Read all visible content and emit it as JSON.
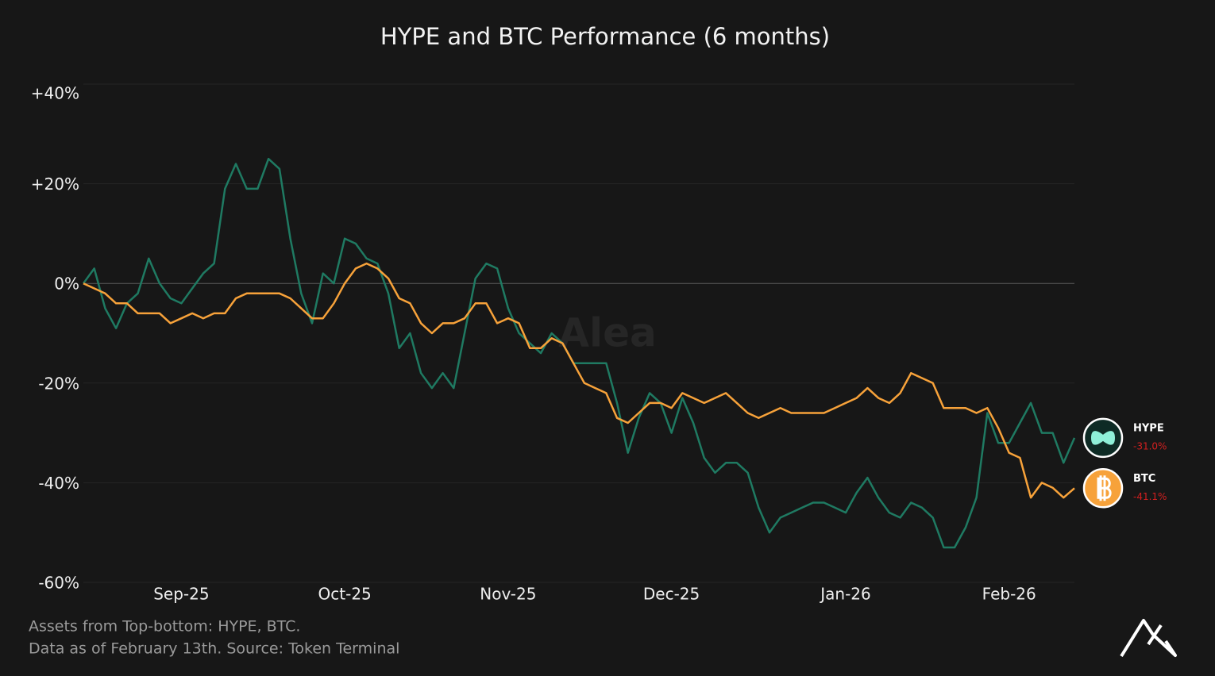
{
  "chart_data": {
    "type": "line",
    "title": "HYPE and BTC Performance (6 months)",
    "watermark": "Alea",
    "notes": [
      "Assets from Top-bottom: HYPE, BTC.",
      "Data as of February 13th. Source: Token Terminal"
    ],
    "categories": [
      null,
      null,
      null,
      null,
      null,
      null,
      null,
      null,
      null,
      "Sep-25",
      null,
      null,
      null,
      null,
      null,
      null,
      null,
      null,
      null,
      null,
      null,
      null,
      null,
      null,
      "Oct-25",
      null,
      null,
      null,
      null,
      null,
      null,
      null,
      null,
      null,
      null,
      null,
      null,
      null,
      null,
      "Nov-25",
      null,
      null,
      null,
      null,
      null,
      null,
      null,
      null,
      null,
      null,
      null,
      null,
      null,
      null,
      "Dec-25",
      null,
      null,
      null,
      null,
      null,
      null,
      null,
      null,
      null,
      null,
      null,
      null,
      null,
      null,
      null,
      "Jan-26",
      null,
      null,
      null,
      null,
      null,
      null,
      null,
      null,
      null,
      null,
      null,
      null,
      null,
      null,
      "Feb-26",
      null,
      null,
      null,
      null,
      null,
      null
    ],
    "series": [
      {
        "name": "HYPE",
        "color": "#1f7a62",
        "last_label": "-31.0%",
        "values": [
          0,
          3,
          -5,
          -9,
          -4,
          -2,
          5,
          0,
          -3,
          -4,
          -1,
          2,
          4,
          19,
          24,
          19,
          19,
          25,
          23,
          9,
          -2,
          -8,
          2,
          0,
          9,
          8,
          5,
          4,
          -2,
          -13,
          -10,
          -18,
          -21,
          -18,
          -21,
          -10,
          1,
          4,
          3,
          -5,
          -10,
          -12,
          -14,
          -10,
          -12,
          -16,
          -16,
          -16,
          -16,
          -24,
          -34,
          -27,
          -22,
          -24,
          -30,
          -23,
          -28,
          -35,
          -38,
          -36,
          -36,
          -38,
          -45,
          -50,
          -47,
          -46,
          -45,
          -44,
          -44,
          -45,
          -46,
          -42,
          -39,
          -43,
          -46,
          -47,
          -44,
          -45,
          -47,
          -53,
          -53,
          -49,
          -43,
          -26,
          -32,
          -32,
          -28,
          -24,
          -30,
          -30,
          -36,
          -31.0
        ]
      },
      {
        "name": "BTC",
        "color": "#f7a23a",
        "last_label": "-41.1%",
        "values": [
          0,
          -1,
          -2,
          -4,
          -4,
          -6,
          -6,
          -6,
          -8,
          -7,
          -6,
          -7,
          -6,
          -6,
          -3,
          -2,
          -2,
          -2,
          -2,
          -3,
          -5,
          -7,
          -7,
          -4,
          0,
          3,
          4,
          3,
          1,
          -3,
          -4,
          -8,
          -10,
          -8,
          -8,
          -7,
          -4,
          -4,
          -8,
          -7,
          -8,
          -13,
          -13,
          -11,
          -12,
          -16,
          -20,
          -21,
          -22,
          -27,
          -28,
          -26,
          -24,
          -24,
          -25,
          -22,
          -23,
          -24,
          -23,
          -22,
          -24,
          -26,
          -27,
          -26,
          -25,
          -26,
          -26,
          -26,
          -26,
          -25,
          -24,
          -23,
          -21,
          -23,
          -24,
          -22,
          -18,
          -19,
          -20,
          -25,
          -25,
          -25,
          -26,
          -25,
          -29,
          -34,
          -35,
          -43,
          -40,
          -41,
          -43,
          -41.1
        ]
      }
    ],
    "ylim": [
      -60,
      40
    ],
    "yticks": [
      {
        "value": 40,
        "label": "+40%"
      },
      {
        "value": 20,
        "label": "+20%"
      },
      {
        "value": 0,
        "label": "0%"
      },
      {
        "value": -20,
        "label": "-20%"
      },
      {
        "value": -40,
        "label": "-40%"
      },
      {
        "value": -60,
        "label": "-60%"
      }
    ],
    "grid": true
  }
}
